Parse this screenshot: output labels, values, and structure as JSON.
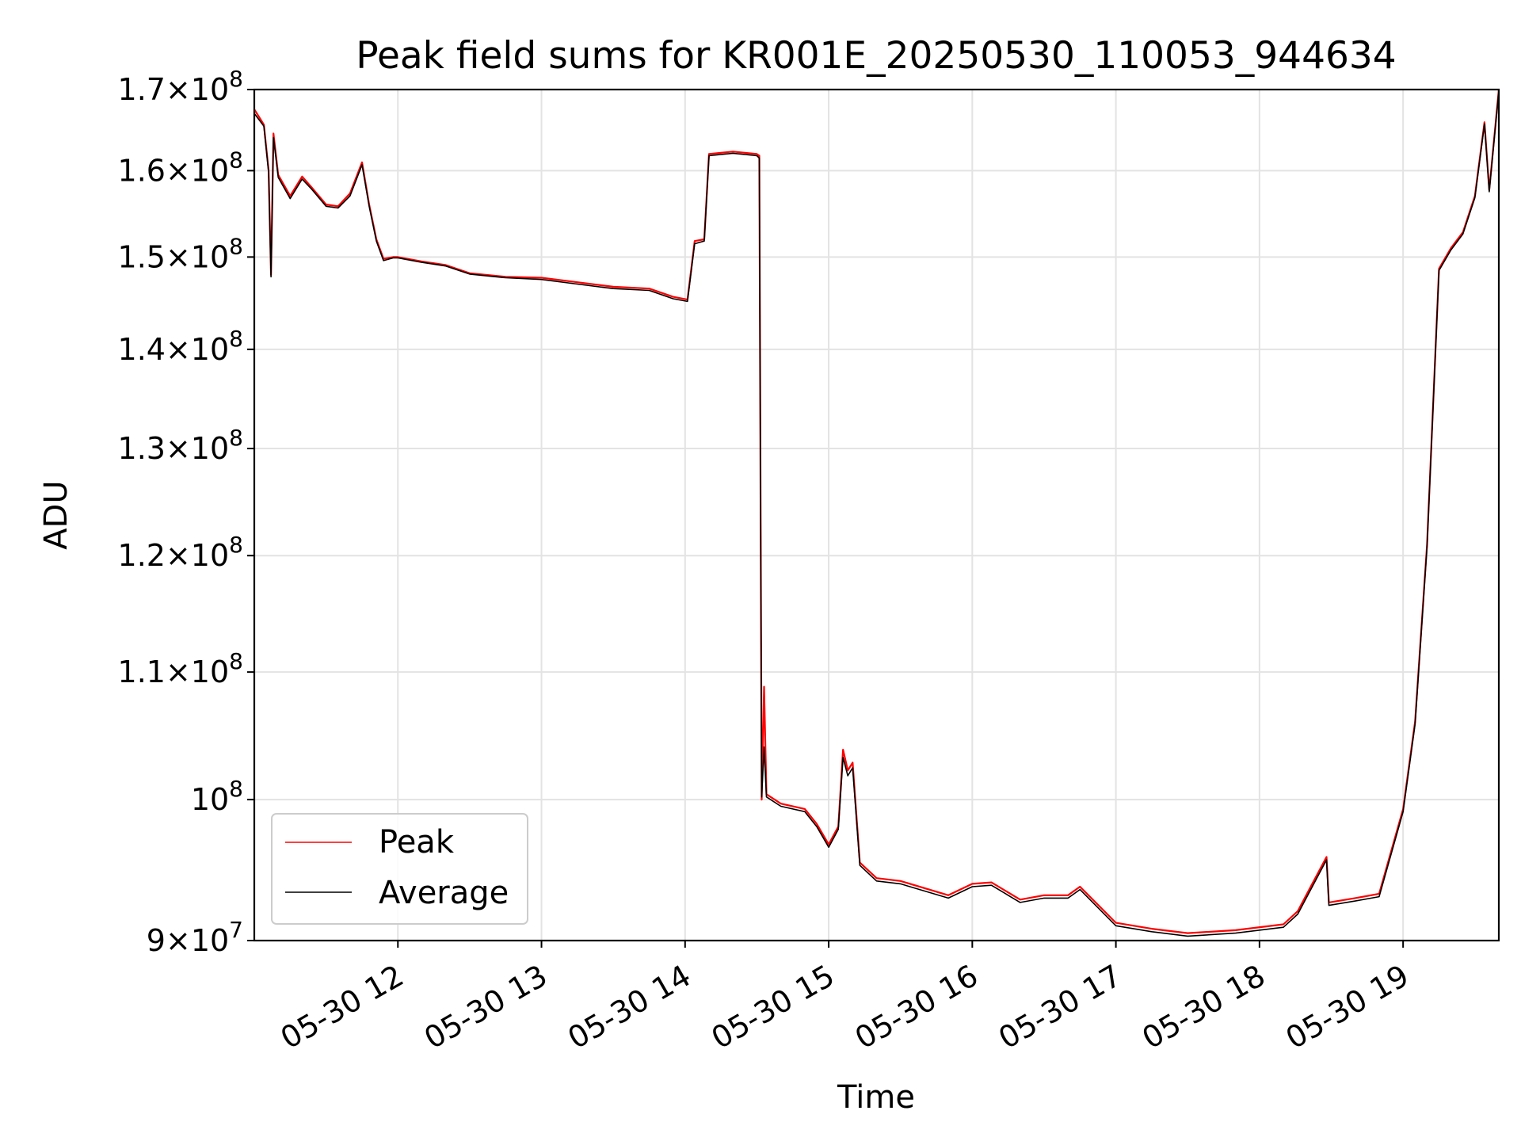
{
  "chart_data": {
    "type": "line",
    "title": "Peak field sums for KR001E_20250530_110053_944634",
    "xlabel": "Time",
    "ylabel": "ADU",
    "y_scale": "log",
    "ylim": [
      90000000,
      170000000
    ],
    "xlim": [
      "2025-05-30 11:00",
      "2025-05-30 19:40"
    ],
    "x_ticks": [
      {
        "value": "2025-05-30 12:00",
        "label": "05-30 12"
      },
      {
        "value": "2025-05-30 13:00",
        "label": "05-30 13"
      },
      {
        "value": "2025-05-30 14:00",
        "label": "05-30 14"
      },
      {
        "value": "2025-05-30 15:00",
        "label": "05-30 15"
      },
      {
        "value": "2025-05-30 16:00",
        "label": "05-30 16"
      },
      {
        "value": "2025-05-30 17:00",
        "label": "05-30 17"
      },
      {
        "value": "2025-05-30 18:00",
        "label": "05-30 18"
      },
      {
        "value": "2025-05-30 19:00",
        "label": "05-30 19"
      }
    ],
    "y_ticks": [
      {
        "value": 90000000,
        "mantissa": "9",
        "exponent": "7"
      },
      {
        "value": 100000000,
        "mantissa": "",
        "exponent": "8"
      },
      {
        "value": 110000000,
        "mantissa": "1.1",
        "exponent": "8"
      },
      {
        "value": 120000000,
        "mantissa": "1.2",
        "exponent": "8"
      },
      {
        "value": 130000000,
        "mantissa": "1.3",
        "exponent": "8"
      },
      {
        "value": 140000000,
        "mantissa": "1.4",
        "exponent": "8"
      },
      {
        "value": 150000000,
        "mantissa": "1.5",
        "exponent": "8"
      },
      {
        "value": 160000000,
        "mantissa": "1.6",
        "exponent": "8"
      },
      {
        "value": 170000000,
        "mantissa": "1.7",
        "exponent": "8"
      }
    ],
    "grid": true,
    "legend_position": "lower-left",
    "x": [
      "2025-05-30 11:00",
      "2025-05-30 11:04",
      "2025-05-30 11:06",
      "2025-05-30 11:07",
      "2025-05-30 11:08",
      "2025-05-30 11:10",
      "2025-05-30 11:15",
      "2025-05-30 11:20",
      "2025-05-30 11:24",
      "2025-05-30 11:30",
      "2025-05-30 11:35",
      "2025-05-30 11:40",
      "2025-05-30 11:45",
      "2025-05-30 11:48",
      "2025-05-30 11:51",
      "2025-05-30 11:54",
      "2025-05-30 11:58",
      "2025-05-30 12:00",
      "2025-05-30 12:10",
      "2025-05-30 12:20",
      "2025-05-30 12:30",
      "2025-05-30 12:45",
      "2025-05-30 13:00",
      "2025-05-30 13:15",
      "2025-05-30 13:30",
      "2025-05-30 13:45",
      "2025-05-30 13:55",
      "2025-05-30 14:01",
      "2025-05-30 14:04",
      "2025-05-30 14:08",
      "2025-05-30 14:10",
      "2025-05-30 14:20",
      "2025-05-30 14:30",
      "2025-05-30 14:31",
      "2025-05-30 14:32",
      "2025-05-30 14:33",
      "2025-05-30 14:34",
      "2025-05-30 14:40",
      "2025-05-30 14:50",
      "2025-05-30 14:55",
      "2025-05-30 15:00",
      "2025-05-30 15:04",
      "2025-05-30 15:06",
      "2025-05-30 15:08",
      "2025-05-30 15:10",
      "2025-05-30 15:13",
      "2025-05-30 15:20",
      "2025-05-30 15:30",
      "2025-05-30 15:50",
      "2025-05-30 16:00",
      "2025-05-30 16:08",
      "2025-05-30 16:20",
      "2025-05-30 16:30",
      "2025-05-30 16:40",
      "2025-05-30 16:45",
      "2025-05-30 17:00",
      "2025-05-30 17:15",
      "2025-05-30 17:30",
      "2025-05-30 17:50",
      "2025-05-30 18:10",
      "2025-05-30 18:16",
      "2025-05-30 18:28",
      "2025-05-30 18:29",
      "2025-05-30 18:40",
      "2025-05-30 18:50",
      "2025-05-30 19:00",
      "2025-05-30 19:05",
      "2025-05-30 19:10",
      "2025-05-30 19:15",
      "2025-05-30 19:20",
      "2025-05-30 19:25",
      "2025-05-30 19:30",
      "2025-05-30 19:34",
      "2025-05-30 19:36",
      "2025-05-30 19:40"
    ],
    "series": [
      {
        "name": "Peak",
        "color": "#ff0000",
        "values": [
          167500000,
          165600000,
          160000000,
          148000000,
          164500000,
          159500000,
          157000000,
          159300000,
          158000000,
          156000000,
          155800000,
          157300000,
          161000000,
          156000000,
          152000000,
          149800000,
          150000000,
          150000000,
          149500000,
          149100000,
          148200000,
          147800000,
          147700000,
          147200000,
          146700000,
          146500000,
          145600000,
          145300000,
          151800000,
          152000000,
          162000000,
          162300000,
          162000000,
          161800000,
          100000000,
          108800000,
          100400000,
          99700000,
          99300000,
          98200000,
          96700000,
          98000000,
          103800000,
          102200000,
          102800000,
          95400000,
          94300000,
          94100000,
          93100000,
          93900000,
          94000000,
          92800000,
          93100000,
          93100000,
          93700000,
          91200000,
          90800000,
          90500000,
          90700000,
          91100000,
          92000000,
          95800000,
          92600000,
          92900000,
          93200000,
          99300000,
          106000000,
          121000000,
          148700000,
          151000000,
          152800000,
          157000000,
          165900000,
          157700000,
          170000000
        ]
      },
      {
        "name": "Average",
        "color": "#000000",
        "values": [
          167000000,
          165400000,
          159800000,
          147800000,
          164000000,
          159200000,
          156700000,
          159000000,
          157800000,
          155800000,
          155600000,
          157000000,
          160700000,
          155800000,
          151800000,
          149600000,
          149900000,
          149900000,
          149400000,
          149000000,
          148100000,
          147700000,
          147500000,
          147000000,
          146500000,
          146300000,
          145400000,
          145100000,
          151500000,
          151800000,
          161800000,
          162100000,
          161800000,
          161500000,
          100200000,
          104000000,
          100200000,
          99500000,
          99100000,
          98000000,
          96500000,
          97800000,
          103200000,
          101800000,
          102400000,
          95200000,
          94100000,
          93900000,
          92900000,
          93700000,
          93800000,
          92600000,
          92900000,
          92900000,
          93500000,
          91000000,
          90600000,
          90300000,
          90500000,
          90900000,
          91800000,
          95600000,
          92400000,
          92700000,
          93000000,
          99100000,
          105800000,
          120800000,
          148500000,
          150800000,
          152600000,
          156800000,
          165700000,
          157500000,
          169800000
        ]
      }
    ]
  }
}
